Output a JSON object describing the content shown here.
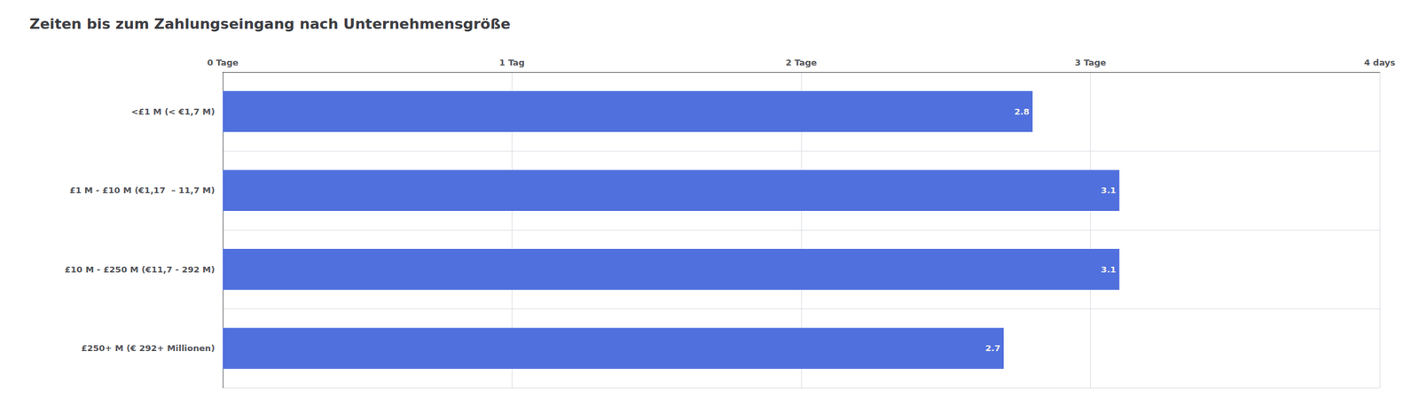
{
  "chart_data": {
    "type": "bar",
    "orientation": "horizontal",
    "title": "Zeiten bis zum Zahlungseingang nach Unternehmensgröße",
    "categories": [
      "<£1 M (< €1,7 M)",
      "£1 M - £10 M (€1,17  – 11,7 M)",
      "£10 M - £250 M (€11,7 - 292 M)",
      "£250+ M (€ 292+ Millionen)"
    ],
    "values": [
      2.8,
      3.1,
      3.1,
      2.7
    ],
    "xlim": [
      0,
      4
    ],
    "xticks": [
      {
        "value": 0,
        "label": "0 Tage"
      },
      {
        "value": 1,
        "label": "1 Tag"
      },
      {
        "value": 2,
        "label": "2 Tage"
      },
      {
        "value": 3,
        "label": "3 Tage"
      },
      {
        "value": 4,
        "label": "4 days"
      }
    ],
    "grid": true,
    "data_labels": true
  }
}
